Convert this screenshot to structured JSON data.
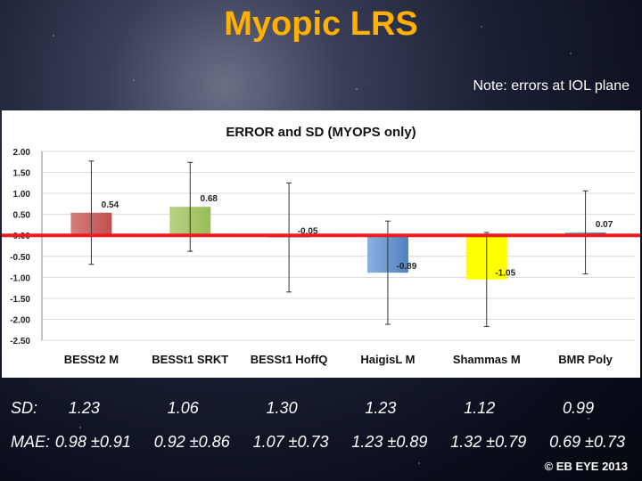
{
  "slide": {
    "title": "Myopic LRS",
    "note": "Note: errors at IOL plane",
    "copyright": "© EB EYE 2013"
  },
  "chart_data": {
    "type": "bar",
    "title": "ERROR and SD (MYOPS only)",
    "categories": [
      "BESSt2 M",
      "BESSt1 SRKT",
      "BESSt1 HoffQ",
      "HaigisL M",
      "Shammas M",
      "BMR Poly"
    ],
    "values": [
      0.54,
      0.68,
      -0.05,
      -0.89,
      -1.05,
      0.07
    ],
    "data_labels": [
      "0.54",
      "0.68",
      "-0.05",
      "-0.89",
      "-1.05",
      "0.07"
    ],
    "error": [
      1.23,
      1.06,
      1.3,
      1.23,
      1.12,
      0.99
    ],
    "ylim": [
      -2.5,
      2.0
    ],
    "yticks": [
      "2.00",
      "1.50",
      "1.00",
      "0.50",
      "0.00",
      "-0.50",
      "-1.00",
      "-1.50",
      "-2.00",
      "-2.50"
    ],
    "ytick_values": [
      2.0,
      1.5,
      1.0,
      0.5,
      0.0,
      -0.5,
      -1.0,
      -1.5,
      -2.0,
      -2.5
    ],
    "grid": true,
    "reference_line": 0.0,
    "colors": {
      "bar_fill": [
        "#c0504d",
        "#9bbb59",
        "#4f81bd",
        "#4f81bd",
        "#ffff00",
        "#4f81bd"
      ],
      "bar_light": [
        "#d47f7c",
        "#b8d184",
        "#8db1e2",
        "#8db1e2",
        "#ffff00",
        "#8db1e2"
      ],
      "reference_line": "#ee1c1c"
    },
    "xlabel": "",
    "ylabel": ""
  },
  "stats": {
    "sd_label": "SD:",
    "sd_values": [
      "1.23",
      "1.06",
      "1.30",
      "1.23",
      "1.12",
      "0.99"
    ],
    "mae_label": "MAE:",
    "mae_values": [
      "0.98 ±0.91",
      "0.92 ±0.86",
      "1.07 ±0.73",
      "1.23 ±0.89",
      "1.32 ±0.79",
      "0.69 ±0.73"
    ]
  }
}
